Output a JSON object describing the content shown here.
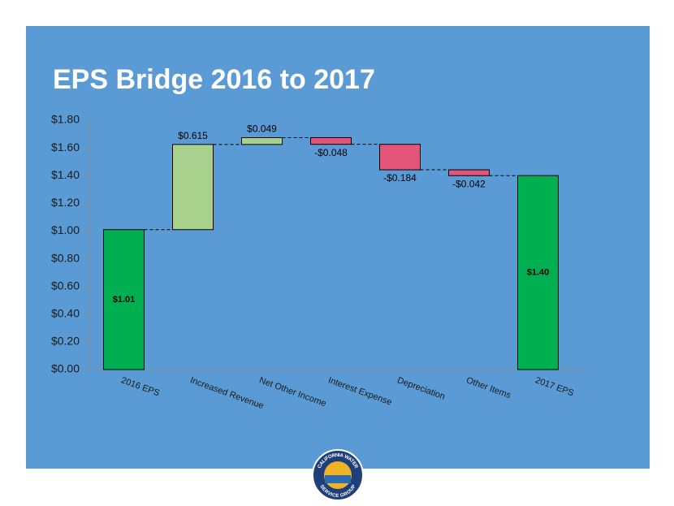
{
  "chart_data": {
    "type": "waterfall",
    "title": "EPS Bridge 2016 to 2017",
    "categories": [
      "2016 EPS",
      "Increased Revenue",
      "Net Other Income",
      "Interest Expense",
      "Depreciation",
      "Other Items",
      "2017 EPS"
    ],
    "values": [
      1.01,
      0.615,
      0.049,
      -0.048,
      -0.184,
      -0.042,
      1.4
    ],
    "value_labels": [
      "$1.01",
      "$0.615",
      "$0.049",
      "-$0.048",
      "-$0.184",
      "-$0.042",
      "$1.40"
    ],
    "measure": [
      "absolute",
      "relative",
      "relative",
      "relative",
      "relative",
      "relative",
      "total"
    ],
    "colors": {
      "total": "#00b050",
      "increase": "#a9d18e",
      "decrease": "#e4557a"
    },
    "ylim": [
      0,
      1.8
    ],
    "yticks": [
      {
        "value": 0,
        "label": "$0.00"
      },
      {
        "value": 0.2,
        "label": "$0.20"
      },
      {
        "value": 0.4,
        "label": "$0.40"
      },
      {
        "value": 0.6,
        "label": "$0.60"
      },
      {
        "value": 0.8,
        "label": "$0.80"
      },
      {
        "value": 1.0,
        "label": "$1.00"
      },
      {
        "value": 1.2,
        "label": "$1.20"
      },
      {
        "value": 1.4,
        "label": "$1.40"
      },
      {
        "value": 1.6,
        "label": "$1.60"
      },
      {
        "value": 1.8,
        "label": "$1.80"
      }
    ],
    "grid": false
  },
  "logo": {
    "top": "CALIFORNIA WATER",
    "bottom": "SERVICE GROUP"
  }
}
